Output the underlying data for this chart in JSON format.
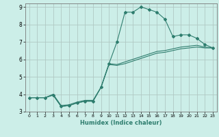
{
  "xlabel": "Humidex (Indice chaleur)",
  "xlim": [
    -0.5,
    23.5
  ],
  "ylim": [
    3,
    9.2
  ],
  "xticks": [
    0,
    1,
    2,
    3,
    4,
    5,
    6,
    7,
    8,
    9,
    10,
    11,
    12,
    13,
    14,
    15,
    16,
    17,
    18,
    19,
    20,
    21,
    22,
    23
  ],
  "yticks": [
    3,
    4,
    5,
    6,
    7,
    8,
    9
  ],
  "bg_color": "#cceee8",
  "line_color": "#2e7d6e",
  "grid_color": "#b0c8c4",
  "lines": [
    {
      "x": [
        0,
        1,
        2,
        3,
        4,
        5,
        6,
        7,
        8,
        9,
        10,
        11,
        12,
        13,
        14,
        15,
        16,
        17,
        18,
        19,
        20,
        21,
        22,
        23
      ],
      "y": [
        3.8,
        3.8,
        3.8,
        3.95,
        3.3,
        3.35,
        3.5,
        3.6,
        3.6,
        4.4,
        5.75,
        7.0,
        8.7,
        8.7,
        9.0,
        8.85,
        8.7,
        8.3,
        7.3,
        7.4,
        7.4,
        7.2,
        6.85,
        6.65
      ],
      "marker": true
    },
    {
      "x": [
        0,
        1,
        2,
        3,
        4,
        5,
        6,
        7,
        8,
        9,
        10,
        11,
        12,
        13,
        14,
        15,
        16,
        17,
        18,
        19,
        20,
        21,
        22,
        23
      ],
      "y": [
        3.8,
        3.8,
        3.8,
        3.95,
        3.3,
        3.35,
        3.5,
        3.6,
        3.6,
        4.4,
        5.75,
        5.7,
        5.85,
        6.0,
        6.15,
        6.3,
        6.45,
        6.5,
        6.6,
        6.7,
        6.75,
        6.8,
        6.7,
        6.65
      ],
      "marker": false
    },
    {
      "x": [
        0,
        1,
        2,
        3,
        4,
        5,
        6,
        7,
        8,
        9,
        10,
        11,
        12,
        13,
        14,
        15,
        16,
        17,
        18,
        19,
        20,
        21,
        22,
        23
      ],
      "y": [
        3.8,
        3.8,
        3.8,
        4.0,
        3.35,
        3.4,
        3.55,
        3.65,
        3.65,
        4.4,
        5.7,
        5.65,
        5.75,
        5.9,
        6.05,
        6.2,
        6.35,
        6.4,
        6.5,
        6.6,
        6.65,
        6.7,
        6.65,
        6.65
      ],
      "marker": false
    }
  ]
}
